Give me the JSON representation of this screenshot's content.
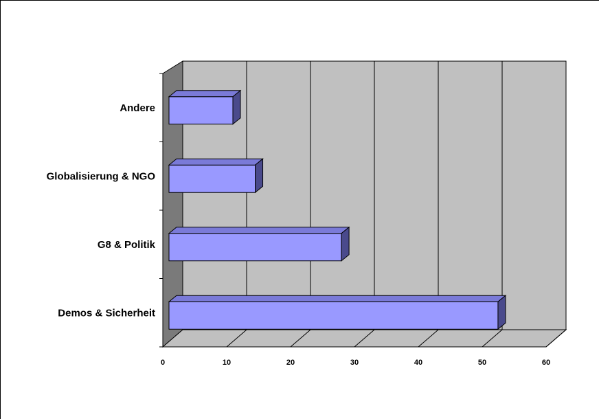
{
  "chart_data": {
    "type": "bar",
    "orientation": "horizontal",
    "three_d": true,
    "categories": [
      "Demos & Sicherheit",
      "G8 & Politik",
      "Globalisierung & NGO",
      "Andere"
    ],
    "values": [
      51.5,
      27,
      13.5,
      10
    ],
    "x_ticks": [
      "0",
      "10",
      "20",
      "30",
      "40",
      "50",
      "60"
    ],
    "xlim": [
      0,
      60
    ],
    "grid": true,
    "legend": "none",
    "title": "",
    "xlabel": "",
    "ylabel": "",
    "colors": {
      "bar_front": "#9999ff",
      "bar_top": "#7a7ad8",
      "bar_side": "#4a4a8c",
      "wall": "#c0c0c0",
      "left_wall": "#7a7a7a",
      "floor": "#c0c0c0",
      "grid": "#000000"
    }
  }
}
